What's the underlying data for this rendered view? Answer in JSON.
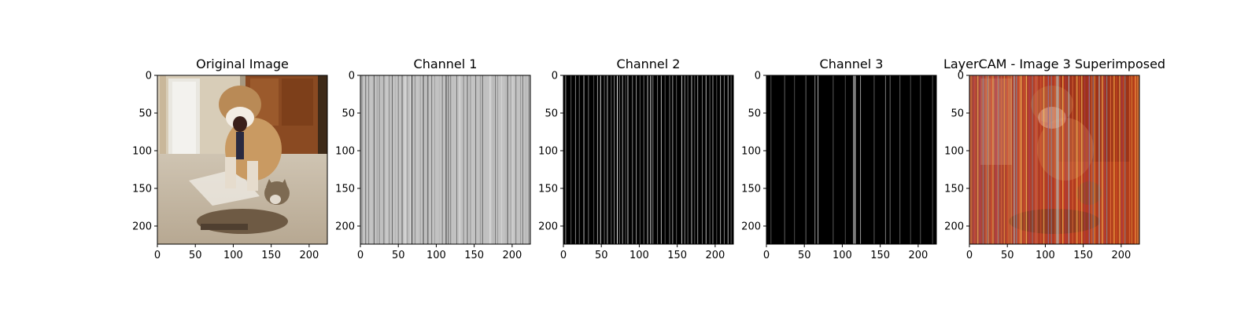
{
  "chart_data": [
    {
      "type": "image",
      "title": "Original Image",
      "content": "photo",
      "xlim": [
        0,
        224
      ],
      "ylim": [
        224,
        0
      ],
      "xticks": [
        0,
        50,
        100,
        150,
        200
      ],
      "yticks": [
        0,
        50,
        100,
        150,
        200
      ]
    },
    {
      "type": "image",
      "title": "Channel 1",
      "content": "vertical-stripes",
      "colormap": "gray",
      "xlim": [
        0,
        224
      ],
      "ylim": [
        224,
        0
      ],
      "xticks": [
        0,
        50,
        100,
        150,
        200
      ],
      "yticks": [
        0,
        50,
        100,
        150,
        200
      ],
      "stripes": [
        [
          2,
          0.48
        ],
        [
          7,
          0.42
        ],
        [
          11,
          0.51
        ],
        [
          14,
          0.78
        ],
        [
          18,
          0.33
        ],
        [
          22,
          0.63
        ],
        [
          25,
          0.5
        ],
        [
          29,
          0.73
        ],
        [
          31,
          0.42
        ],
        [
          35,
          0.81
        ],
        [
          38,
          0.53
        ],
        [
          42,
          0.4
        ],
        [
          46,
          0.7
        ],
        [
          50,
          0.5
        ],
        [
          55,
          0.36
        ],
        [
          59,
          0.92
        ],
        [
          62,
          0.6
        ],
        [
          66,
          0.84
        ],
        [
          68,
          0.22
        ],
        [
          72,
          0.55
        ],
        [
          75,
          0.78
        ],
        [
          79,
          0.64
        ],
        [
          83,
          0.28
        ],
        [
          87,
          0.71
        ],
        [
          89,
          0.3
        ],
        [
          94,
          0.44
        ],
        [
          98,
          0.63
        ],
        [
          104,
          0.71
        ],
        [
          108,
          0.46
        ],
        [
          113,
          0.2
        ],
        [
          116,
          0.38
        ],
        [
          119,
          0.48
        ],
        [
          123,
          0.75
        ],
        [
          127,
          0.46
        ],
        [
          131,
          0.88
        ],
        [
          136,
          0.51
        ],
        [
          141,
          0.38
        ],
        [
          145,
          0.58
        ],
        [
          148,
          0.78
        ],
        [
          152,
          0.42
        ],
        [
          158,
          0.6
        ],
        [
          161,
          0.37
        ],
        [
          165,
          0.74
        ],
        [
          171,
          0.91
        ],
        [
          175,
          0.69
        ],
        [
          178,
          0.43
        ],
        [
          181,
          0.6
        ],
        [
          186,
          0.84
        ],
        [
          191,
          0.71
        ],
        [
          194,
          0.31
        ],
        [
          198,
          0.63
        ],
        [
          201,
          0.84
        ],
        [
          205,
          0.46
        ],
        [
          211,
          0.6
        ],
        [
          214,
          0.44
        ],
        [
          218,
          0.69
        ],
        [
          222,
          0.49
        ]
      ]
    },
    {
      "type": "image",
      "title": "Channel 2",
      "content": "vertical-stripes",
      "colormap": "gray",
      "xlim": [
        0,
        224
      ],
      "ylim": [
        224,
        0
      ],
      "xticks": [
        0,
        50,
        100,
        150,
        200
      ],
      "yticks": [
        0,
        50,
        100,
        150,
        200
      ],
      "stripes": [
        [
          3,
          0.6
        ],
        [
          10,
          0.35
        ],
        [
          16,
          0.5
        ],
        [
          21,
          0.4
        ],
        [
          27,
          0.72
        ],
        [
          33,
          0.45
        ],
        [
          40,
          0.3
        ],
        [
          45,
          0.62
        ],
        [
          49,
          0.85
        ],
        [
          54,
          0.4
        ],
        [
          58,
          0.7
        ],
        [
          63,
          0.38
        ],
        [
          67,
          0.55
        ],
        [
          71,
          0.9
        ],
        [
          74,
          0.42
        ],
        [
          78,
          0.65
        ],
        [
          82,
          0.33
        ],
        [
          85,
          0.78
        ],
        [
          91,
          0.5
        ],
        [
          96,
          0.6
        ],
        [
          101,
          0.35
        ],
        [
          106,
          0.45
        ],
        [
          111,
          0.75
        ],
        [
          115,
          0.88
        ],
        [
          118,
          0.52
        ],
        [
          124,
          0.44
        ],
        [
          129,
          0.7
        ],
        [
          134,
          0.35
        ],
        [
          140,
          0.48
        ],
        [
          144,
          0.62
        ],
        [
          149,
          0.38
        ],
        [
          156,
          0.8
        ],
        [
          160,
          0.55
        ],
        [
          164,
          0.42
        ],
        [
          169,
          0.7
        ],
        [
          173,
          0.36
        ],
        [
          177,
          0.6
        ],
        [
          183,
          0.45
        ],
        [
          188,
          0.72
        ],
        [
          193,
          0.4
        ],
        [
          197,
          0.58
        ],
        [
          202,
          0.33
        ],
        [
          207,
          0.65
        ],
        [
          212,
          0.5
        ],
        [
          217,
          0.7
        ],
        [
          221,
          0.4
        ]
      ]
    },
    {
      "type": "image",
      "title": "Channel 3",
      "content": "vertical-stripes",
      "colormap": "gray",
      "xlim": [
        0,
        224
      ],
      "ylim": [
        224,
        0
      ],
      "xticks": [
        0,
        50,
        100,
        150,
        200
      ],
      "yticks": [
        0,
        50,
        100,
        150,
        200
      ],
      "stripes": [
        [
          6,
          0.32
        ],
        [
          24,
          0.38
        ],
        [
          37,
          0.3
        ],
        [
          52,
          0.42
        ],
        [
          64,
          0.55
        ],
        [
          68,
          0.7
        ],
        [
          88,
          0.35
        ],
        [
          104,
          0.3
        ],
        [
          115,
          0.88
        ],
        [
          117,
          0.95
        ],
        [
          124,
          0.6
        ],
        [
          142,
          0.36
        ],
        [
          157,
          0.48
        ],
        [
          163,
          0.42
        ],
        [
          176,
          0.38
        ],
        [
          190,
          0.3
        ],
        [
          203,
          0.35
        ],
        [
          219,
          0.32
        ]
      ]
    },
    {
      "type": "image",
      "title": "LayerCAM - Image 3 Superimposed",
      "content": "photo-with-heatmap-overlay",
      "xlim": [
        0,
        224
      ],
      "ylim": [
        224,
        0
      ],
      "xticks": [
        0,
        50,
        100,
        150,
        200
      ],
      "yticks": [
        0,
        50,
        100,
        150,
        200
      ]
    }
  ]
}
